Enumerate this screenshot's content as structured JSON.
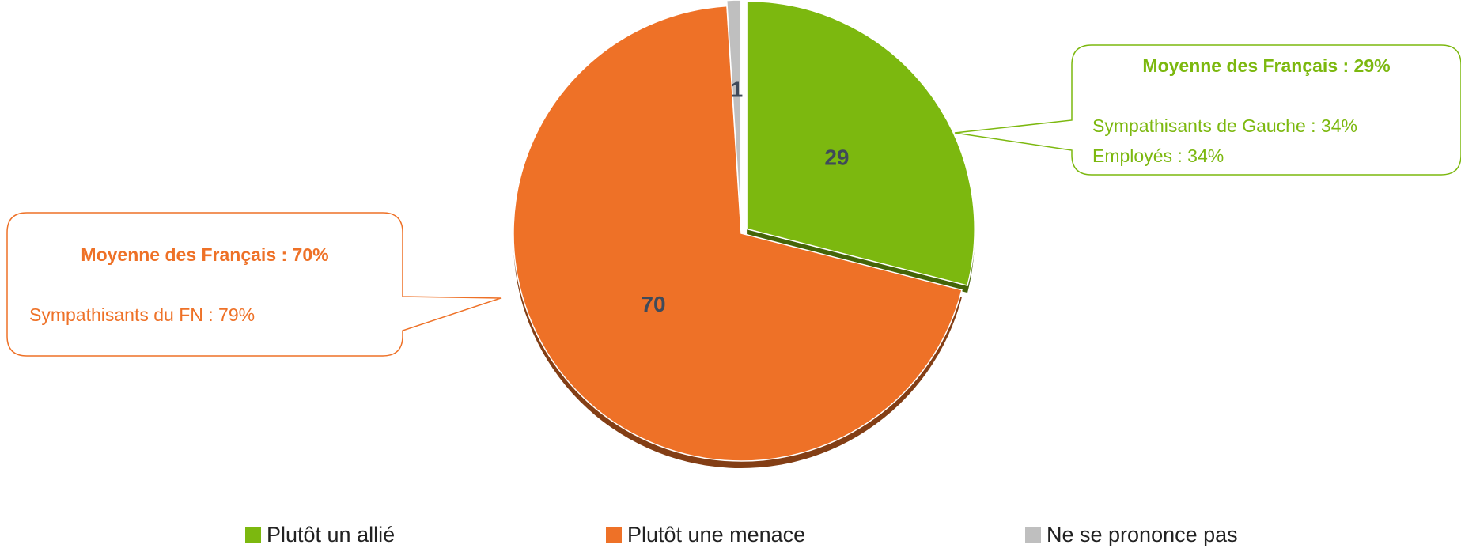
{
  "chart_data": {
    "type": "pie",
    "categories": [
      "Plutôt un allié",
      "Plutôt une menace",
      "Ne se prononce pas"
    ],
    "values": [
      29,
      70,
      1
    ],
    "colors": [
      "#7cb80f",
      "#ee7127",
      "#bfbfbf"
    ],
    "legend": "bottom",
    "annotations": [
      {
        "title": "Moyenne des Français : 29%",
        "lines": [
          "Sympathisants de Gauche : 34%",
          "Employés : 34%"
        ]
      },
      {
        "title": "Moyenne des Français : 70%",
        "lines": [
          "Sympathisants du FN : 79%"
        ]
      }
    ]
  }
}
